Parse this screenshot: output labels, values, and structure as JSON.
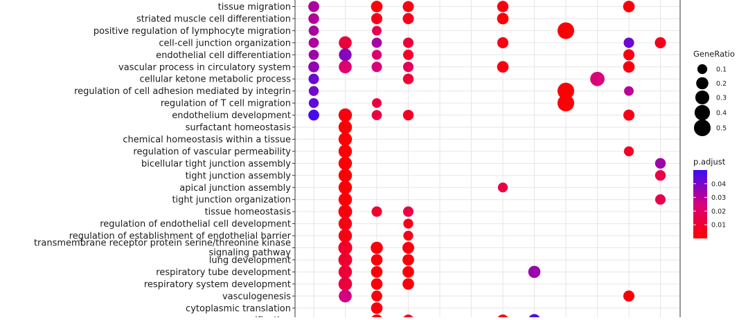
{
  "chart_data": {
    "type": "scatter",
    "subtype": "dot-plot",
    "y_terms": [
      "tissue migration",
      "striated muscle cell differentiation",
      "positive regulation of lymphocyte migration",
      "cell-cell junction organization",
      "endothelial cell differentiation",
      "vascular process in circulatory system",
      "cellular ketone metabolic process",
      "regulation of cell adhesion mediated by integrin",
      "regulation of T cell migration",
      "endothelium development",
      "surfactant homeostasis",
      "chemical homeostasis within a tissue",
      "regulation of vascular permeability",
      "bicellular tight junction assembly",
      "tight junction assembly",
      "apical junction assembly",
      "tight junction organization",
      "tissue homeostasis",
      "regulation of endothelial cell development",
      "regulation of establishment of endothelial barrier",
      "transmembrane receptor protein serine/threonine kinase signaling pathway",
      "lung development",
      "respiratory tube development",
      "respiratory system development",
      "vasculogenesis",
      "cytoplasmic translation",
      "ossification"
    ],
    "wrapped_labels": {
      "transmembrane receptor protein serine/threonine kinase signaling pathway": [
        "transmembrane receptor protein serine/threonine kinase",
        "signaling pathway"
      ]
    },
    "x_columns": 12,
    "x_labels_visible": false,
    "points": [
      {
        "x": 1,
        "term": "tissue migration",
        "gene_ratio": 0.14,
        "p_adjust": 0.032
      },
      {
        "x": 3,
        "term": "tissue migration",
        "gene_ratio": 0.17,
        "p_adjust": 0.002
      },
      {
        "x": 4,
        "term": "tissue migration",
        "gene_ratio": 0.15,
        "p_adjust": 0.004
      },
      {
        "x": 7,
        "term": "tissue migration",
        "gene_ratio": 0.16,
        "p_adjust": 0.003
      },
      {
        "x": 11,
        "term": "tissue migration",
        "gene_ratio": 0.17,
        "p_adjust": 0.002
      },
      {
        "x": 1,
        "term": "striated muscle cell differentiation",
        "gene_ratio": 0.13,
        "p_adjust": 0.031
      },
      {
        "x": 3,
        "term": "striated muscle cell differentiation",
        "gene_ratio": 0.15,
        "p_adjust": 0.005
      },
      {
        "x": 4,
        "term": "striated muscle cell differentiation",
        "gene_ratio": 0.15,
        "p_adjust": 0.006
      },
      {
        "x": 7,
        "term": "striated muscle cell differentiation",
        "gene_ratio": 0.17,
        "p_adjust": 0.002
      },
      {
        "x": 1,
        "term": "positive regulation of lymphocyte migration",
        "gene_ratio": 0.11,
        "p_adjust": 0.033
      },
      {
        "x": 3,
        "term": "positive regulation of lymphocyte migration",
        "gene_ratio": 0.09,
        "p_adjust": 0.016
      },
      {
        "x": 9,
        "term": "positive regulation of lymphocyte migration",
        "gene_ratio": 0.5,
        "p_adjust": 0.001
      },
      {
        "x": 1,
        "term": "cell-cell junction organization",
        "gene_ratio": 0.11,
        "p_adjust": 0.032
      },
      {
        "x": 2,
        "term": "cell-cell junction organization",
        "gene_ratio": 0.24,
        "p_adjust": 0.012
      },
      {
        "x": 3,
        "term": "cell-cell junction organization",
        "gene_ratio": 0.11,
        "p_adjust": 0.033
      },
      {
        "x": 4,
        "term": "cell-cell junction organization",
        "gene_ratio": 0.12,
        "p_adjust": 0.012
      },
      {
        "x": 7,
        "term": "cell-cell junction organization",
        "gene_ratio": 0.15,
        "p_adjust": 0.004
      },
      {
        "x": 11,
        "term": "cell-cell junction organization",
        "gene_ratio": 0.12,
        "p_adjust": 0.042
      },
      {
        "x": 12,
        "term": "cell-cell junction organization",
        "gene_ratio": 0.15,
        "p_adjust": 0.006
      },
      {
        "x": 1,
        "term": "endothelial cell differentiation",
        "gene_ratio": 0.11,
        "p_adjust": 0.034
      },
      {
        "x": 2,
        "term": "endothelial cell differentiation",
        "gene_ratio": 0.23,
        "p_adjust": 0.038
      },
      {
        "x": 3,
        "term": "endothelial cell differentiation",
        "gene_ratio": 0.1,
        "p_adjust": 0.022
      },
      {
        "x": 4,
        "term": "endothelial cell differentiation",
        "gene_ratio": 0.12,
        "p_adjust": 0.008
      },
      {
        "x": 11,
        "term": "endothelial cell differentiation",
        "gene_ratio": 0.15,
        "p_adjust": 0.003
      },
      {
        "x": 1,
        "term": "vascular process in circulatory system",
        "gene_ratio": 0.14,
        "p_adjust": 0.036
      },
      {
        "x": 2,
        "term": "vascular process in circulatory system",
        "gene_ratio": 0.24,
        "p_adjust": 0.022
      },
      {
        "x": 3,
        "term": "vascular process in circulatory system",
        "gene_ratio": 0.12,
        "p_adjust": 0.024
      },
      {
        "x": 4,
        "term": "vascular process in circulatory system",
        "gene_ratio": 0.12,
        "p_adjust": 0.018
      },
      {
        "x": 7,
        "term": "vascular process in circulatory system",
        "gene_ratio": 0.17,
        "p_adjust": 0.003
      },
      {
        "x": 11,
        "term": "vascular process in circulatory system",
        "gene_ratio": 0.17,
        "p_adjust": 0.003
      },
      {
        "x": 1,
        "term": "cellular ketone metabolic process",
        "gene_ratio": 0.12,
        "p_adjust": 0.042
      },
      {
        "x": 4,
        "term": "cellular ketone metabolic process",
        "gene_ratio": 0.13,
        "p_adjust": 0.011
      },
      {
        "x": 10,
        "term": "cellular ketone metabolic process",
        "gene_ratio": 0.33,
        "p_adjust": 0.024
      },
      {
        "x": 1,
        "term": "regulation of cell adhesion mediated by integrin",
        "gene_ratio": 0.1,
        "p_adjust": 0.041
      },
      {
        "x": 9,
        "term": "regulation of cell adhesion mediated by integrin",
        "gene_ratio": 0.5,
        "p_adjust": 0.001
      },
      {
        "x": 11,
        "term": "regulation of cell adhesion mediated by integrin",
        "gene_ratio": 0.09,
        "p_adjust": 0.03
      },
      {
        "x": 1,
        "term": "regulation of T cell migration",
        "gene_ratio": 0.1,
        "p_adjust": 0.044
      },
      {
        "x": 3,
        "term": "regulation of T cell migration",
        "gene_ratio": 0.09,
        "p_adjust": 0.012
      },
      {
        "x": 9,
        "term": "regulation of T cell migration",
        "gene_ratio": 0.5,
        "p_adjust": 0.001
      },
      {
        "x": 1,
        "term": "endothelium development",
        "gene_ratio": 0.14,
        "p_adjust": 0.048
      },
      {
        "x": 2,
        "term": "endothelium development",
        "gene_ratio": 0.27,
        "p_adjust": 0.003
      },
      {
        "x": 3,
        "term": "endothelium development",
        "gene_ratio": 0.11,
        "p_adjust": 0.013
      },
      {
        "x": 4,
        "term": "endothelium development",
        "gene_ratio": 0.13,
        "p_adjust": 0.007
      },
      {
        "x": 11,
        "term": "endothelium development",
        "gene_ratio": 0.15,
        "p_adjust": 0.004
      },
      {
        "x": 2,
        "term": "surfactant homeostasis",
        "gene_ratio": 0.27,
        "p_adjust": 0.001
      },
      {
        "x": 2,
        "term": "chemical homeostasis within a tissue",
        "gene_ratio": 0.27,
        "p_adjust": 0.001
      },
      {
        "x": 2,
        "term": "regulation of vascular permeability",
        "gene_ratio": 0.27,
        "p_adjust": 0.001
      },
      {
        "x": 11,
        "term": "regulation of vascular permeability",
        "gene_ratio": 0.1,
        "p_adjust": 0.008
      },
      {
        "x": 2,
        "term": "bicellular tight junction assembly",
        "gene_ratio": 0.27,
        "p_adjust": 0.001
      },
      {
        "x": 12,
        "term": "bicellular tight junction assembly",
        "gene_ratio": 0.13,
        "p_adjust": 0.034
      },
      {
        "x": 2,
        "term": "tight junction assembly",
        "gene_ratio": 0.27,
        "p_adjust": 0.001
      },
      {
        "x": 12,
        "term": "tight junction assembly",
        "gene_ratio": 0.13,
        "p_adjust": 0.014
      },
      {
        "x": 2,
        "term": "apical junction assembly",
        "gene_ratio": 0.27,
        "p_adjust": 0.001
      },
      {
        "x": 7,
        "term": "apical junction assembly",
        "gene_ratio": 0.1,
        "p_adjust": 0.014
      },
      {
        "x": 2,
        "term": "tight junction organization",
        "gene_ratio": 0.27,
        "p_adjust": 0.001
      },
      {
        "x": 12,
        "term": "tight junction organization",
        "gene_ratio": 0.12,
        "p_adjust": 0.016
      },
      {
        "x": 2,
        "term": "tissue homeostasis",
        "gene_ratio": 0.29,
        "p_adjust": 0.003
      },
      {
        "x": 3,
        "term": "tissue homeostasis",
        "gene_ratio": 0.12,
        "p_adjust": 0.009
      },
      {
        "x": 4,
        "term": "tissue homeostasis",
        "gene_ratio": 0.12,
        "p_adjust": 0.014
      },
      {
        "x": 2,
        "term": "regulation of endothelial cell development",
        "gene_ratio": 0.27,
        "p_adjust": 0.004
      },
      {
        "x": 4,
        "term": "regulation of endothelial cell development",
        "gene_ratio": 0.1,
        "p_adjust": 0.005
      },
      {
        "x": 2,
        "term": "regulation of establishment of endothelial barrier",
        "gene_ratio": 0.27,
        "p_adjust": 0.004
      },
      {
        "x": 4,
        "term": "regulation of establishment of endothelial barrier",
        "gene_ratio": 0.1,
        "p_adjust": 0.005
      },
      {
        "x": 2,
        "term": "transmembrane receptor protein serine/threonine kinase signaling pathway",
        "gene_ratio": 0.3,
        "p_adjust": 0.008
      },
      {
        "x": 3,
        "term": "transmembrane receptor protein serine/threonine kinase signaling pathway",
        "gene_ratio": 0.2,
        "p_adjust": 0.002
      },
      {
        "x": 4,
        "term": "transmembrane receptor protein serine/threonine kinase signaling pathway",
        "gene_ratio": 0.18,
        "p_adjust": 0.003
      },
      {
        "x": 2,
        "term": "lung development",
        "gene_ratio": 0.29,
        "p_adjust": 0.009
      },
      {
        "x": 3,
        "term": "lung development",
        "gene_ratio": 0.17,
        "p_adjust": 0.002
      },
      {
        "x": 4,
        "term": "lung development",
        "gene_ratio": 0.17,
        "p_adjust": 0.002
      },
      {
        "x": 2,
        "term": "respiratory tube development",
        "gene_ratio": 0.27,
        "p_adjust": 0.011
      },
      {
        "x": 3,
        "term": "respiratory tube development",
        "gene_ratio": 0.17,
        "p_adjust": 0.002
      },
      {
        "x": 4,
        "term": "respiratory tube development",
        "gene_ratio": 0.17,
        "p_adjust": 0.002
      },
      {
        "x": 8,
        "term": "respiratory tube development",
        "gene_ratio": 0.2,
        "p_adjust": 0.035
      },
      {
        "x": 2,
        "term": "respiratory system development",
        "gene_ratio": 0.28,
        "p_adjust": 0.012
      },
      {
        "x": 3,
        "term": "respiratory system development",
        "gene_ratio": 0.17,
        "p_adjust": 0.002
      },
      {
        "x": 4,
        "term": "respiratory system development",
        "gene_ratio": 0.17,
        "p_adjust": 0.002
      },
      {
        "x": 2,
        "term": "vasculogenesis",
        "gene_ratio": 0.24,
        "p_adjust": 0.026
      },
      {
        "x": 3,
        "term": "vasculogenesis",
        "gene_ratio": 0.14,
        "p_adjust": 0.003
      },
      {
        "x": 11,
        "term": "vasculogenesis",
        "gene_ratio": 0.15,
        "p_adjust": 0.002
      },
      {
        "x": 3,
        "term": "cytoplasmic translation",
        "gene_ratio": 0.17,
        "p_adjust": 0.002
      },
      {
        "x": 3,
        "term": "ossification",
        "gene_ratio": 0.17,
        "p_adjust": 0.002
      },
      {
        "x": 4,
        "term": "ossification",
        "gene_ratio": 0.15,
        "p_adjust": 0.004
      },
      {
        "x": 7,
        "term": "ossification",
        "gene_ratio": 0.16,
        "p_adjust": 0.003
      },
      {
        "x": 8,
        "term": "ossification",
        "gene_ratio": 0.2,
        "p_adjust": 0.047
      }
    ],
    "legend_size": {
      "title": "GeneRatio",
      "breaks": [
        0.1,
        0.2,
        0.3,
        0.4,
        0.5
      ],
      "labels": [
        "0.1",
        "0.2",
        "0.3",
        "0.4",
        "0.5"
      ]
    },
    "legend_color": {
      "title": "p.adjust",
      "range": [
        0,
        0.05
      ],
      "breaks": [
        0.04,
        0.03,
        0.02,
        0.01
      ],
      "labels": [
        "0.04",
        "0.03",
        "0.02",
        "0.01"
      ],
      "low_color": "#ff0000",
      "high_color": "#3b0cf5"
    },
    "grid": true,
    "legend_position": "right"
  }
}
